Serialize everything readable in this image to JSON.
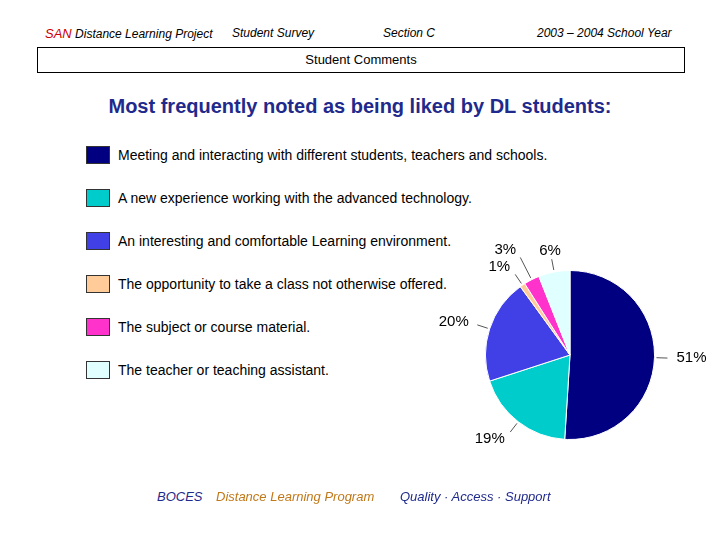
{
  "header": {
    "program": "SAN",
    "project": "Distance Learning Project",
    "survey": "Student Survey",
    "section": "Section C",
    "year": "2003 – 2004 School Year",
    "heading": "Student Comments"
  },
  "chart_data": {
    "type": "pie",
    "title": "Most frequently noted as being liked by DL students:",
    "categories": [
      "Meeting and interacting with different students, teachers and schools.",
      "A new experience working with the advanced technology.",
      "An interesting and comfortable Learning environment.",
      "The opportunity to take a class not otherwise offered.",
      "The subject or course material.",
      "The teacher or teaching assistant."
    ],
    "values": [
      51,
      19,
      20,
      1,
      3,
      6
    ],
    "value_labels": [
      "51%",
      "19%",
      "20%",
      "1%",
      "3%",
      "6%"
    ],
    "colors": [
      "#000080",
      "#00cccc",
      "#4040e6",
      "#ffcc99",
      "#ff33cc",
      "#e0ffff"
    ],
    "legend": "left",
    "data_labels": true
  },
  "footer": {
    "org": "BOCES",
    "program": "Distance Learning Program",
    "motto": "Quality · Access · Support"
  }
}
